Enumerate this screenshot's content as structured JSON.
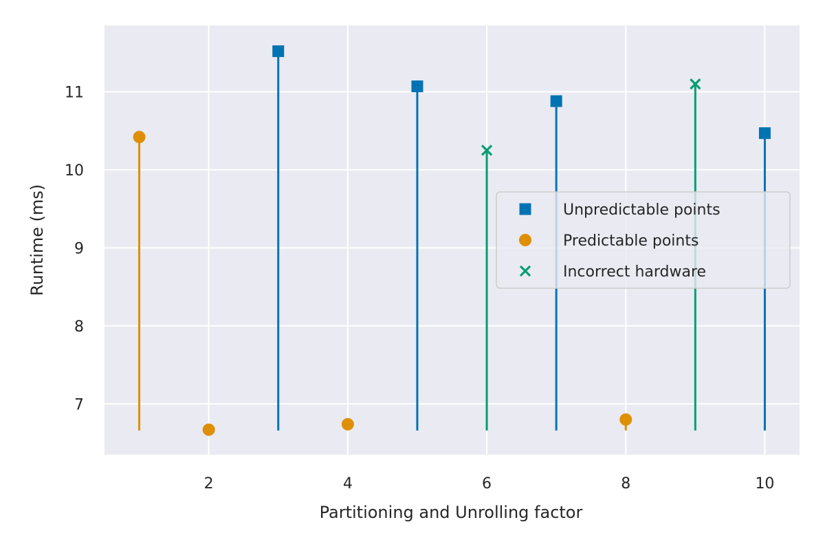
{
  "chart_data": {
    "type": "scatter",
    "title": "",
    "xlabel": "Partitioning and Unrolling factor",
    "ylabel": "Runtime (ms)",
    "xlim": [
      0.5,
      10.5
    ],
    "ylim": [
      6.35,
      11.85
    ],
    "baseline": 6.66,
    "xticks": [
      2,
      4,
      6,
      8,
      10
    ],
    "yticks": [
      7,
      8,
      9,
      10,
      11
    ],
    "grid": true,
    "legend_position": "center-right",
    "series": [
      {
        "name": "Unpredictable points",
        "marker": "square",
        "color": "#0173b2",
        "points": [
          {
            "x": 3,
            "y": 11.52
          },
          {
            "x": 5,
            "y": 11.07
          },
          {
            "x": 7,
            "y": 10.88
          },
          {
            "x": 10,
            "y": 10.47
          }
        ]
      },
      {
        "name": "Predictable points",
        "marker": "circle",
        "color": "#de8f05",
        "points": [
          {
            "x": 1,
            "y": 10.42
          },
          {
            "x": 2,
            "y": 6.67
          },
          {
            "x": 4,
            "y": 6.74
          },
          {
            "x": 8,
            "y": 6.8
          }
        ]
      },
      {
        "name": "Incorrect hardware",
        "marker": "x",
        "color": "#029e73",
        "points": [
          {
            "x": 6,
            "y": 10.25
          },
          {
            "x": 9,
            "y": 11.1
          }
        ]
      }
    ]
  },
  "colors": {
    "plot_background": "#eaeaf2",
    "grid": "#ffffff",
    "legend_border": "#cccccc"
  }
}
